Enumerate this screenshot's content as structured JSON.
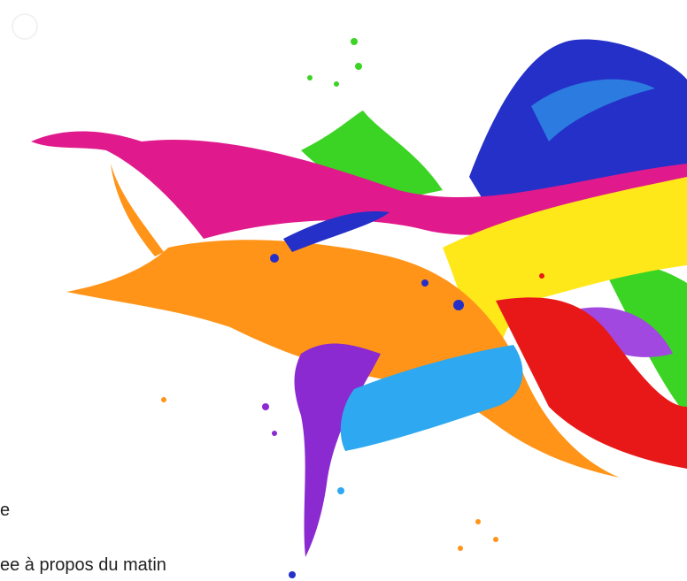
{
  "caption": {
    "line1": "e",
    "line2": "ee à propos du matin"
  }
}
